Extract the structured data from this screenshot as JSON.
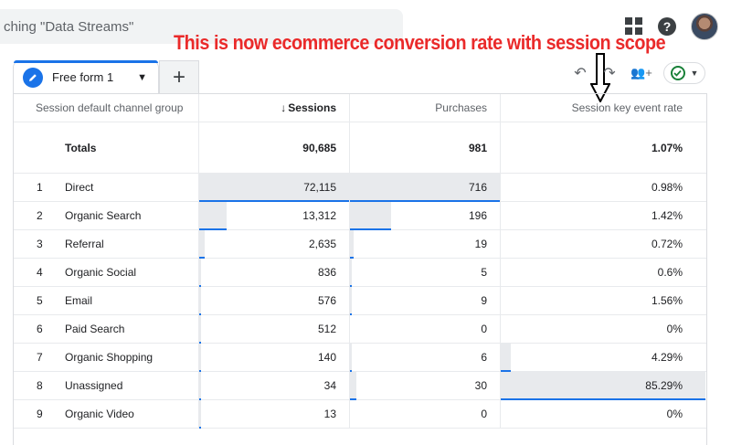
{
  "search": {
    "text": "ching \"Data Streams\""
  },
  "top_icons": [
    "apps-icon",
    "help-icon",
    "avatar"
  ],
  "annotation": {
    "text": "This is now ecommerce conversion rate with session scope",
    "color": "#ea2a2a"
  },
  "tab": {
    "label": "Free form 1",
    "add_label": "+"
  },
  "toolbar": {
    "undo": "↶",
    "redo": "↷",
    "share": "👥+"
  },
  "colors": {
    "accent": "#1a73e8",
    "bar": "#e8eaed",
    "success": "#188038"
  },
  "table": {
    "headers": [
      "Session default channel group",
      "Sessions",
      "Purchases",
      "Session key event rate"
    ],
    "sort_indicator": "↓",
    "totals": {
      "label": "Totals",
      "sessions": "90,685",
      "purchases": "981",
      "rate": "1.07%"
    },
    "rows": [
      {
        "rank": "1",
        "channel": "Direct",
        "sessions": "72,115",
        "sessions_share": 1.0,
        "purchases": "716",
        "purchases_share": 1.0,
        "rate": "0.98%",
        "rate_share": 0.0
      },
      {
        "rank": "2",
        "channel": "Organic Search",
        "sessions": "13,312",
        "sessions_share": 0.185,
        "purchases": "196",
        "purchases_share": 0.274,
        "rate": "1.42%",
        "rate_share": 0.0
      },
      {
        "rank": "3",
        "channel": "Referral",
        "sessions": "2,635",
        "sessions_share": 0.037,
        "purchases": "19",
        "purchases_share": 0.027,
        "rate": "0.72%",
        "rate_share": 0.0
      },
      {
        "rank": "4",
        "channel": "Organic Social",
        "sessions": "836",
        "sessions_share": 0.012,
        "purchases": "5",
        "purchases_share": 0.007,
        "rate": "0.6%",
        "rate_share": 0.0
      },
      {
        "rank": "5",
        "channel": "Email",
        "sessions": "576",
        "sessions_share": 0.008,
        "purchases": "9",
        "purchases_share": 0.013,
        "rate": "1.56%",
        "rate_share": 0.0
      },
      {
        "rank": "6",
        "channel": "Paid Search",
        "sessions": "512",
        "sessions_share": 0.007,
        "purchases": "0",
        "purchases_share": 0.0,
        "rate": "0%",
        "rate_share": 0.0
      },
      {
        "rank": "7",
        "channel": "Organic Shopping",
        "sessions": "140",
        "sessions_share": 0.002,
        "purchases": "6",
        "purchases_share": 0.008,
        "rate": "4.29%",
        "rate_share": 0.05
      },
      {
        "rank": "8",
        "channel": "Unassigned",
        "sessions": "34",
        "sessions_share": 0.0005,
        "purchases": "30",
        "purchases_share": 0.042,
        "rate": "85.29%",
        "rate_share": 1.0
      },
      {
        "rank": "9",
        "channel": "Organic Video",
        "sessions": "13",
        "sessions_share": 0.0002,
        "purchases": "0",
        "purchases_share": 0.0,
        "rate": "0%",
        "rate_share": 0.0
      }
    ]
  }
}
